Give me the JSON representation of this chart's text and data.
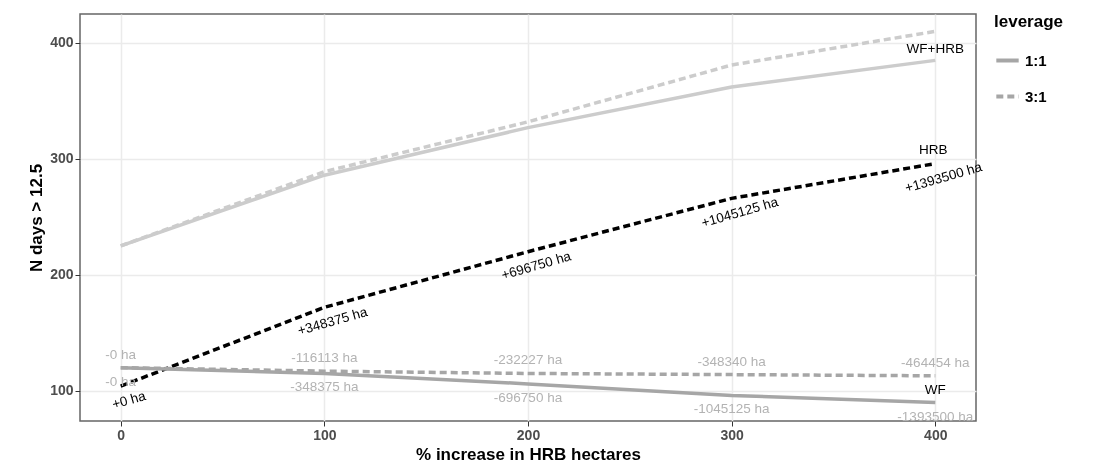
{
  "chart_data": {
    "type": "line",
    "xlabel": "% increase in HRB hectares",
    "ylabel": "N days > 12.5",
    "legend_title": "leverage",
    "x": [
      0,
      100,
      200,
      300,
      400
    ],
    "xlim": [
      -20,
      420
    ],
    "xticks": [
      0,
      100,
      200,
      300,
      400
    ],
    "ylim": [
      74,
      425
    ],
    "yticks": [
      100,
      200,
      300,
      400
    ],
    "grid": true,
    "legend": "right",
    "series": [
      {
        "color": "#cccccc",
        "line_style": "solid",
        "values": [
          225,
          286,
          327,
          362,
          385
        ]
      },
      {
        "color": "#cccccc",
        "line_style": "dashed",
        "values": [
          225,
          289,
          332,
          381,
          410
        ]
      },
      {
        "color": "#000000",
        "line_style": "dashed",
        "values": [
          104,
          172,
          220,
          266,
          296
        ]
      },
      {
        "name": "1:1",
        "color": "#a6a6a6",
        "line_style": "solid",
        "values": [
          120,
          115,
          106,
          96,
          90
        ]
      },
      {
        "name": "3:1",
        "color": "#a6a6a6",
        "line_style": "dashed",
        "values": [
          120,
          117,
          115,
          114,
          113
        ]
      }
    ],
    "annotations": [
      {
        "text": "+0 ha",
        "x": 0,
        "y": 104
      },
      {
        "text": "+348375 ha",
        "x": 100,
        "y": 172
      },
      {
        "text": "+696750 ha",
        "x": 200,
        "y": 220
      },
      {
        "text": "+1045125 ha",
        "x": 300,
        "y": 266
      },
      {
        "text": "+1393500 ha",
        "x": 400,
        "y": 296
      },
      {
        "text": "-0 ha",
        "x": 0,
        "y": 120
      },
      {
        "text": "-348375 ha",
        "x": 100,
        "y": 115
      },
      {
        "text": "-696750 ha",
        "x": 200,
        "y": 106
      },
      {
        "text": "-1045125 ha",
        "x": 300,
        "y": 96
      },
      {
        "text": "-1393500 ha",
        "x": 400,
        "y": 90
      },
      {
        "text": "-0 ha",
        "x": 0,
        "y": 120
      },
      {
        "text": "-116113 ha",
        "x": 100,
        "y": 117
      },
      {
        "text": "-232227 ha",
        "x": 200,
        "y": 115
      },
      {
        "text": "-348340 ha",
        "x": 300,
        "y": 114
      },
      {
        "text": "-464454 ha",
        "x": 400,
        "y": 113
      },
      {
        "text": "WF+HRB",
        "x": 400,
        "y": 385
      },
      {
        "text": "HRB",
        "x": 400,
        "y": 296
      },
      {
        "text": "WF",
        "x": 400,
        "y": 90
      }
    ]
  }
}
